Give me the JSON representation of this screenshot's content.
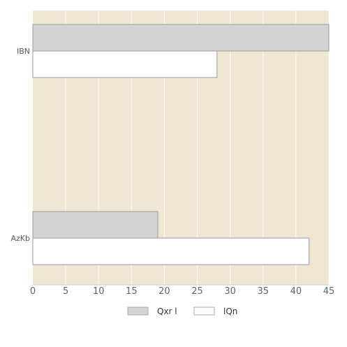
{
  "chart_data": {
    "type": "bar",
    "orientation": "horizontal",
    "categories": [
      "IBN",
      "AzKb"
    ],
    "series": [
      {
        "name": "Qxr l",
        "values": [
          45,
          19
        ],
        "color": "#d3d3d3"
      },
      {
        "name": "lQn",
        "values": [
          28,
          42
        ],
        "color": "#ffffff"
      }
    ],
    "xlim": [
      0,
      45
    ],
    "x_ticks": [
      0,
      5,
      10,
      15,
      20,
      25,
      30,
      35,
      40,
      45
    ],
    "grid": true,
    "legend_position": "bottom",
    "plot_background": "#efe7d3",
    "bar_stroke": "#999999"
  }
}
